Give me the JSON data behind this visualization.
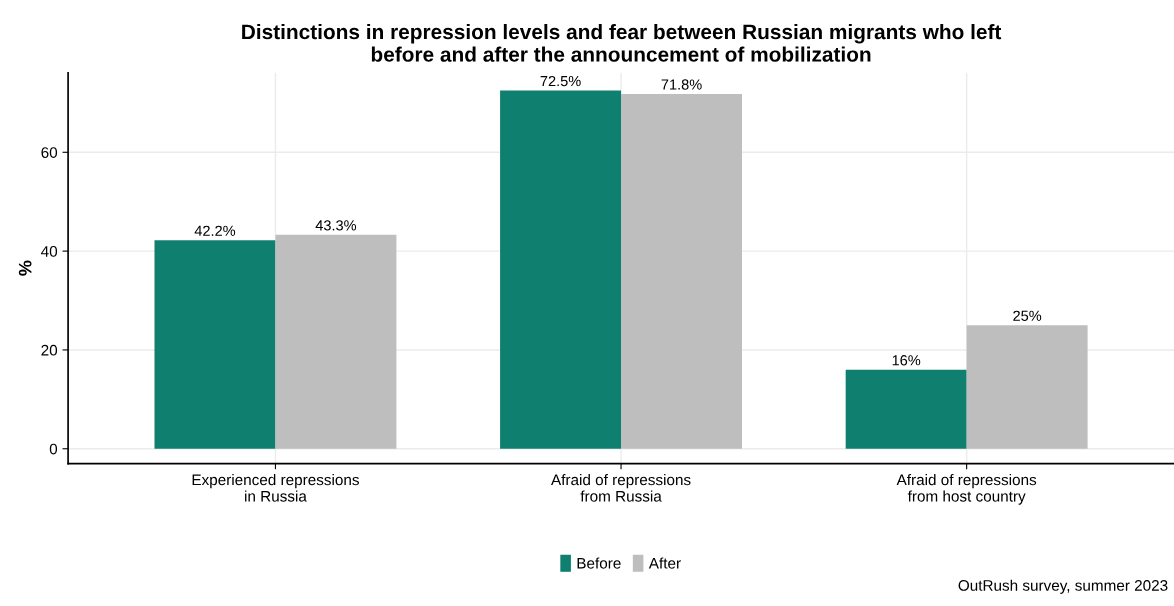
{
  "chart_data": {
    "type": "bar",
    "title": "Distinctions in repression levels and fear between Russian migrants who left\nbefore and after the announcement of mobilization",
    "ylabel": "%",
    "categories": [
      "Experienced repressions\nin Russia",
      "Afraid of repressions\nfrom Russia",
      "Afraid of repressions\nfrom host country"
    ],
    "series": [
      {
        "name": "Before",
        "color": "#0f7f6f",
        "values": [
          42.2,
          72.5,
          16
        ],
        "value_labels": [
          "42.2%",
          "72.5%",
          "16%"
        ]
      },
      {
        "name": "After",
        "color": "#bebebe",
        "values": [
          43.3,
          71.8,
          25
        ],
        "value_labels": [
          "43.3%",
          "71.8%",
          "25%"
        ]
      }
    ],
    "ylim": [
      -3,
      76.1
    ],
    "yticks": [
      0,
      20,
      40,
      60
    ],
    "grid": true,
    "legend": "bottom",
    "annotations": [
      "OutRush survey, summer 2023"
    ]
  }
}
